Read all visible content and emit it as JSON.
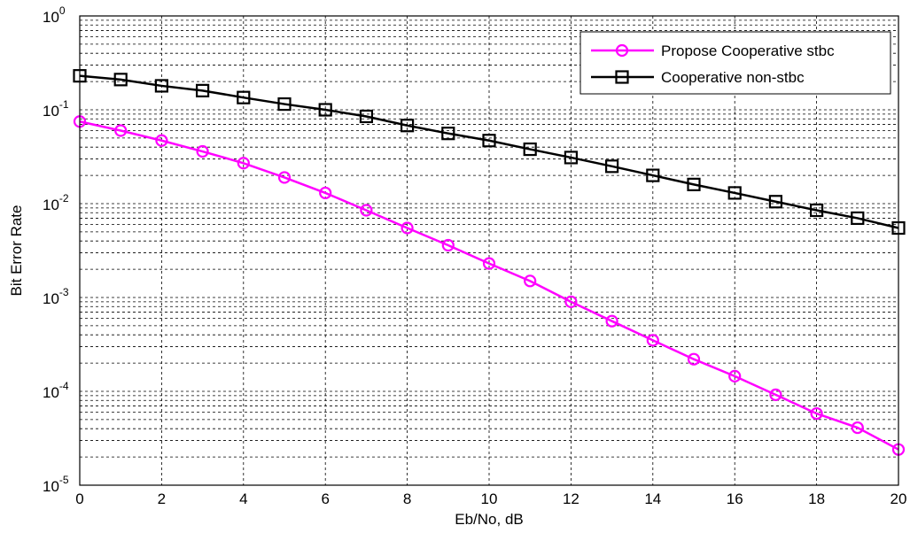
{
  "chart_data": {
    "type": "line",
    "title": "",
    "xlabel": "Eb/No, dB",
    "ylabel": "Bit Error Rate",
    "xlim": [
      0,
      20
    ],
    "ylim": [
      1e-05,
      1
    ],
    "yscale": "log",
    "grid": true,
    "legend_position": "top-right",
    "x_ticks": [
      "0",
      "2",
      "4",
      "6",
      "8",
      "10",
      "12",
      "14",
      "16",
      "18",
      "20"
    ],
    "y_ticks": [
      {
        "base": "10",
        "exp": "0"
      },
      {
        "base": "10",
        "exp": "-1"
      },
      {
        "base": "10",
        "exp": "-2"
      },
      {
        "base": "10",
        "exp": "-3"
      },
      {
        "base": "10",
        "exp": "-4"
      },
      {
        "base": "10",
        "exp": "-5"
      }
    ],
    "x": [
      0,
      1,
      2,
      3,
      4,
      5,
      6,
      7,
      8,
      9,
      10,
      11,
      12,
      13,
      14,
      15,
      16,
      17,
      18,
      19,
      20
    ],
    "series": [
      {
        "name": "Propose Cooperative stbc",
        "color": "#ff00ff",
        "marker": "circle",
        "values": [
          0.075,
          0.06,
          0.047,
          0.036,
          0.027,
          0.019,
          0.013,
          0.0085,
          0.0055,
          0.0036,
          0.0023,
          0.0015,
          0.0009,
          0.00056,
          0.00035,
          0.00022,
          0.000145,
          9.2e-05,
          5.8e-05,
          4.1e-05,
          2.4e-05
        ]
      },
      {
        "name": "Cooperative non-stbc",
        "color": "#000000",
        "marker": "square",
        "values": [
          0.23,
          0.21,
          0.18,
          0.16,
          0.135,
          0.115,
          0.1,
          0.085,
          0.068,
          0.056,
          0.047,
          0.038,
          0.031,
          0.025,
          0.02,
          0.016,
          0.013,
          0.0105,
          0.0085,
          0.007,
          0.0055
        ]
      }
    ]
  }
}
